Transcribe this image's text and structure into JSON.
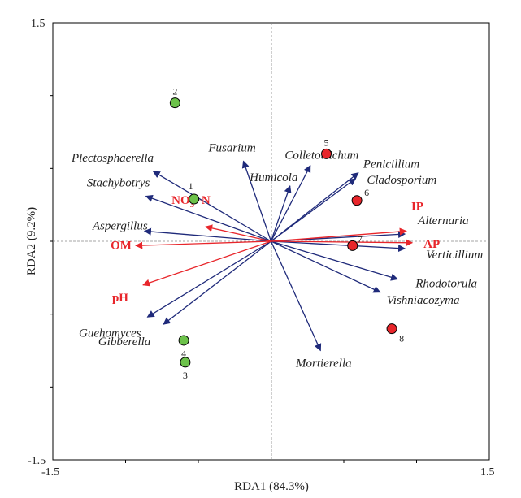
{
  "chart_data": {
    "type": "scatter",
    "subtype": "rda-biplot",
    "title": "",
    "xlabel": "RDA1 (84.3%)",
    "ylabel": "RDA2 (9.2%)",
    "xlim": [
      -1.5,
      1.5
    ],
    "ylim": [
      -1.5,
      1.5
    ],
    "x_tick_labels": [
      "-1.5",
      "1.5"
    ],
    "y_tick_labels": [
      "1.5",
      "-1.5"
    ],
    "grid": false,
    "zero_lines": true,
    "colors": {
      "species_arrow": "#1f2a7a",
      "env_arrow": "#e8262b",
      "group_green": "#6cc24a",
      "group_red": "#e8262b"
    },
    "env_vectors": [
      {
        "label": "IP",
        "x": 0.93,
        "y": 0.07
      },
      {
        "label": "AP",
        "x": 0.97,
        "y": -0.01
      },
      {
        "label": "NO3 -N",
        "label_main": "NO",
        "label_sub": "3",
        "label_tail": " -N",
        "x": -0.45,
        "y": 0.1
      },
      {
        "label": "OM",
        "x": -0.93,
        "y": -0.03
      },
      {
        "label": "pH",
        "x": -0.88,
        "y": -0.3
      }
    ],
    "species_vectors": [
      {
        "label": "Fusarium",
        "x": -0.19,
        "y": 0.55
      },
      {
        "label": "Colletotrichum",
        "x": 0.27,
        "y": 0.52
      },
      {
        "label": "Humicola",
        "x": 0.13,
        "y": 0.38
      },
      {
        "label": "Penicillium",
        "x": 0.6,
        "y": 0.47
      },
      {
        "label": "Cladosporium",
        "x": 0.58,
        "y": 0.43
      },
      {
        "label": "Plectosphaerella",
        "x": -0.81,
        "y": 0.48
      },
      {
        "label": "Stachybotrys",
        "x": -0.86,
        "y": 0.31
      },
      {
        "label": "Aspergillus",
        "x": -0.87,
        "y": 0.07
      },
      {
        "label": "Alternaria",
        "x": 0.92,
        "y": 0.05
      },
      {
        "label": "Verticillium",
        "x": 0.92,
        "y": -0.05
      },
      {
        "label": "Rhodotorula",
        "x": 0.87,
        "y": -0.26
      },
      {
        "label": "Vishniacozyma",
        "x": 0.75,
        "y": -0.35
      },
      {
        "label": "Guehomyces",
        "x": -0.85,
        "y": -0.52
      },
      {
        "label": "Gibberella",
        "x": -0.74,
        "y": -0.57
      },
      {
        "label": "Mortierella",
        "x": 0.34,
        "y": -0.75
      }
    ],
    "samples": [
      {
        "label": "1",
        "group": "green",
        "x": -0.53,
        "y": 0.29
      },
      {
        "label": "2",
        "group": "green",
        "x": -0.66,
        "y": 0.95
      },
      {
        "label": "3",
        "group": "green",
        "x": -0.59,
        "y": -0.83
      },
      {
        "label": "4",
        "group": "green",
        "x": -0.6,
        "y": -0.68
      },
      {
        "label": "5",
        "group": "red",
        "x": 0.38,
        "y": 0.6
      },
      {
        "label": "6",
        "group": "red",
        "x": 0.59,
        "y": 0.28
      },
      {
        "label": "7",
        "group": "red",
        "x": 0.56,
        "y": -0.03
      },
      {
        "label": "8",
        "group": "red",
        "x": 0.83,
        "y": -0.6
      }
    ]
  }
}
